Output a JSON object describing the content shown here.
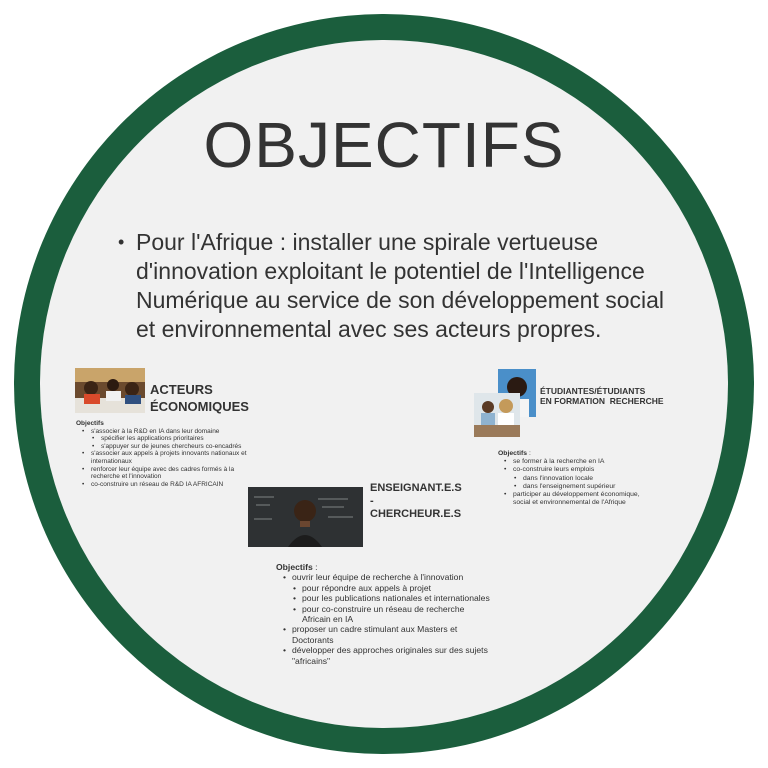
{
  "title": "OBJECTIFS",
  "main_bullet": "Pour l'Afrique : installer une spirale vertueuse d'innovation exploitant le potentiel de l'Intelligence Numérique au service de son développement social et environnemental avec ses acteurs propres.",
  "acteurs": {
    "heading_line1": "ACTEURS",
    "heading_line2": "ÉCONOMIQUES",
    "objectifs_label": "Objectifs",
    "items": [
      "s'associer à la R&D en IA dans leur domaine",
      "spécifier les applications prioritaires",
      "s'appuyer sur de jeunes chercheurs co-encadrés",
      "s'associer aux appels à projets innovants nationaux et internationaux",
      "renforcer leur équipe avec des cadres formés à la recherche et l'innovation",
      "co-construire un réseau de R&D IA AFRICAIN"
    ]
  },
  "etudiants": {
    "heading_line1": "ÉTUDIANTES/ÉTUDIANTS",
    "heading_line2": "EN FORMATION  RECHERCHE",
    "objectifs_label": "Objectifs",
    "objectifs_suffix": " :",
    "items": [
      "se former à la recherche en IA",
      "co-construire leurs emplois",
      "dans l'innovation locale",
      "dans l'enseignement supérieur",
      "participer au développement économique, social et environnemental de l'Afrique"
    ]
  },
  "enseignants": {
    "heading_line1": "ENSEIGNANT.E.S",
    "heading_line2": "-",
    "heading_line3": "CHERCHEUR.E.S",
    "objectifs_label": "Objectifs",
    "objectifs_suffix": " :",
    "items": [
      "ouvrir leur équipe de recherche à l'innovation",
      "pour répondre aux appels à projet",
      "pour les publications nationales et internationales",
      "pour co-construire un réseau de recherche Africain en IA",
      "proposer un cadre stimulant aux Masters et Doctorants",
      "développer des approches originales sur des sujets \"africains\""
    ]
  }
}
